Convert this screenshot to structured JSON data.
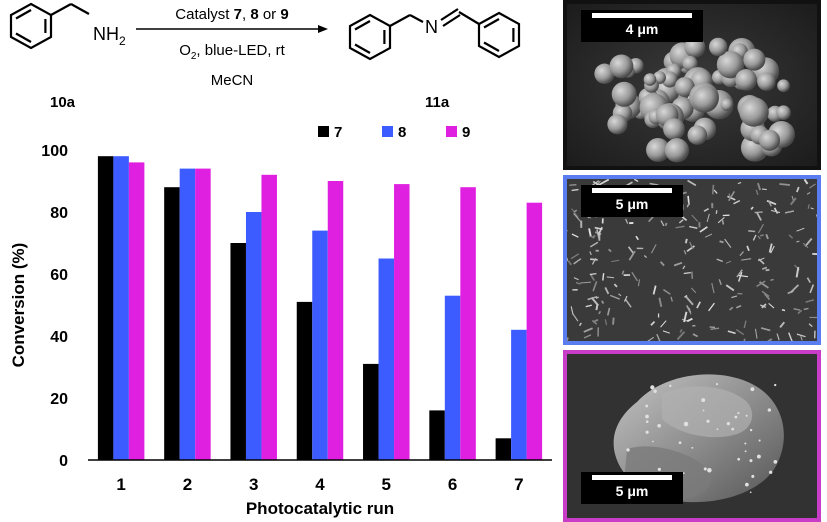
{
  "scheme": {
    "reactant_label": "10a",
    "product_label": "11a",
    "reactant_group": "NH",
    "reactant_group_sub": "2",
    "product_atom": "N",
    "conditions": {
      "line1_prefix": "Catalyst ",
      "line1_cat_a": "7",
      "line1_sep1": ", ",
      "line1_cat_b": "8",
      "line1_sep2": " or ",
      "line1_cat_c": "9",
      "line2_o": "O",
      "line2_sub": "2",
      "line2_rest": ", blue-LED, rt",
      "line3": "MeCN"
    }
  },
  "chart_data": {
    "type": "bar",
    "categories": [
      "1",
      "2",
      "3",
      "4",
      "5",
      "6",
      "7"
    ],
    "series": [
      {
        "name": "7",
        "color": "#000000",
        "values": [
          98,
          88,
          70,
          51,
          31,
          16,
          7
        ]
      },
      {
        "name": "8",
        "color": "#3d5cff",
        "values": [
          98,
          94,
          80,
          74,
          65,
          53,
          42
        ]
      },
      {
        "name": "9",
        "color": "#e020e0",
        "values": [
          96,
          94,
          92,
          90,
          89,
          88,
          83
        ]
      }
    ],
    "title": "",
    "xlabel": "Photocatalytic run",
    "ylabel": "Conversion (%)",
    "ylim": [
      0,
      100
    ],
    "yticks": [
      0,
      20,
      40,
      60,
      80,
      100
    ],
    "grid": false,
    "legend": "top-right"
  },
  "sem_images": [
    {
      "scale_label": "4 μm",
      "border_color": "#111111"
    },
    {
      "scale_label": "5 μm",
      "border_color": "#5b7cf0"
    },
    {
      "scale_label": "5 μm",
      "border_color": "#c83cc8"
    }
  ]
}
